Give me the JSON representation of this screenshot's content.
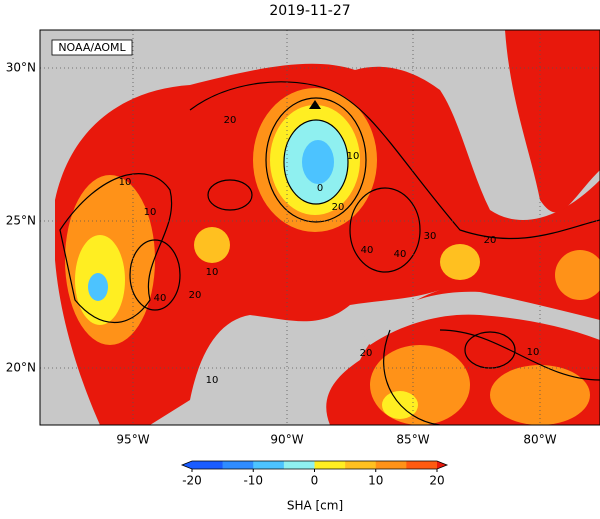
{
  "title": "2019-11-27",
  "credit": "NOAA/AOML",
  "lat_labels": [
    "30°N",
    "25°N",
    "20°N"
  ],
  "lon_labels": [
    "95°W",
    "90°W",
    "85°W",
    "80°W"
  ],
  "contour_labels": [
    "20",
    "10",
    "10",
    "0",
    "10",
    "20",
    "10",
    "40",
    "20",
    "40",
    "40",
    "20",
    "30",
    "20",
    "10",
    "10"
  ],
  "colorbar": {
    "label": "SHA [cm]",
    "ticks": [
      -20,
      -10,
      0,
      10,
      20
    ],
    "colors": [
      "#1a5cff",
      "#2f8cff",
      "#4cc3ff",
      "#8ff0f0",
      "#ffee22",
      "#ffc020",
      "#ff9218",
      "#ff5a10"
    ],
    "under": "#1a5cff",
    "over": "#e8180c"
  }
}
